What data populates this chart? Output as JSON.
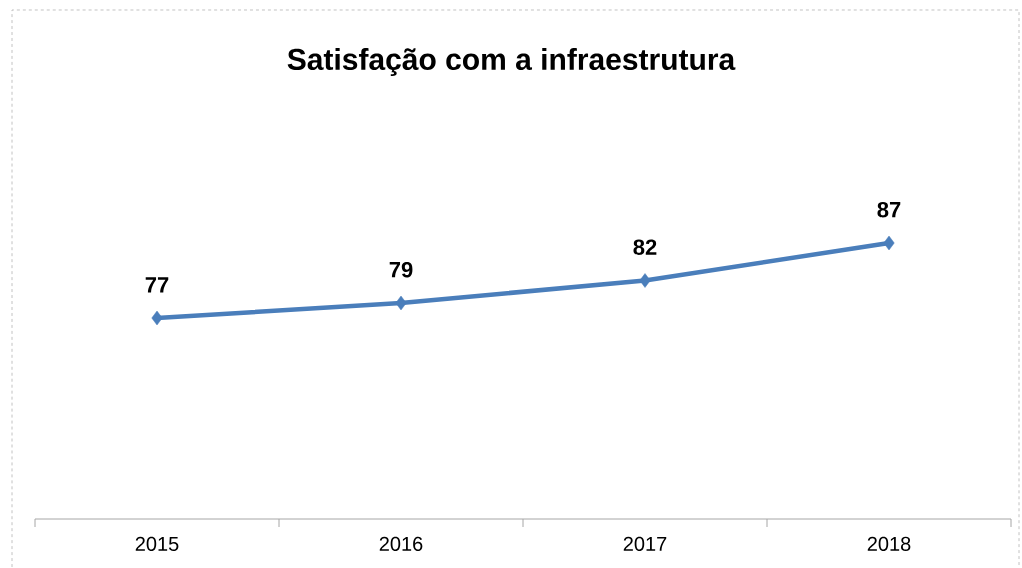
{
  "chart_data": {
    "type": "line",
    "title": "Satisfação com a infraestrutura",
    "categories": [
      "2015",
      "2016",
      "2017",
      "2018"
    ],
    "values": [
      77,
      79,
      82,
      87
    ],
    "color": "#4a7ebb",
    "marker": "diamond",
    "line_style": "solid",
    "data_labels": true
  }
}
